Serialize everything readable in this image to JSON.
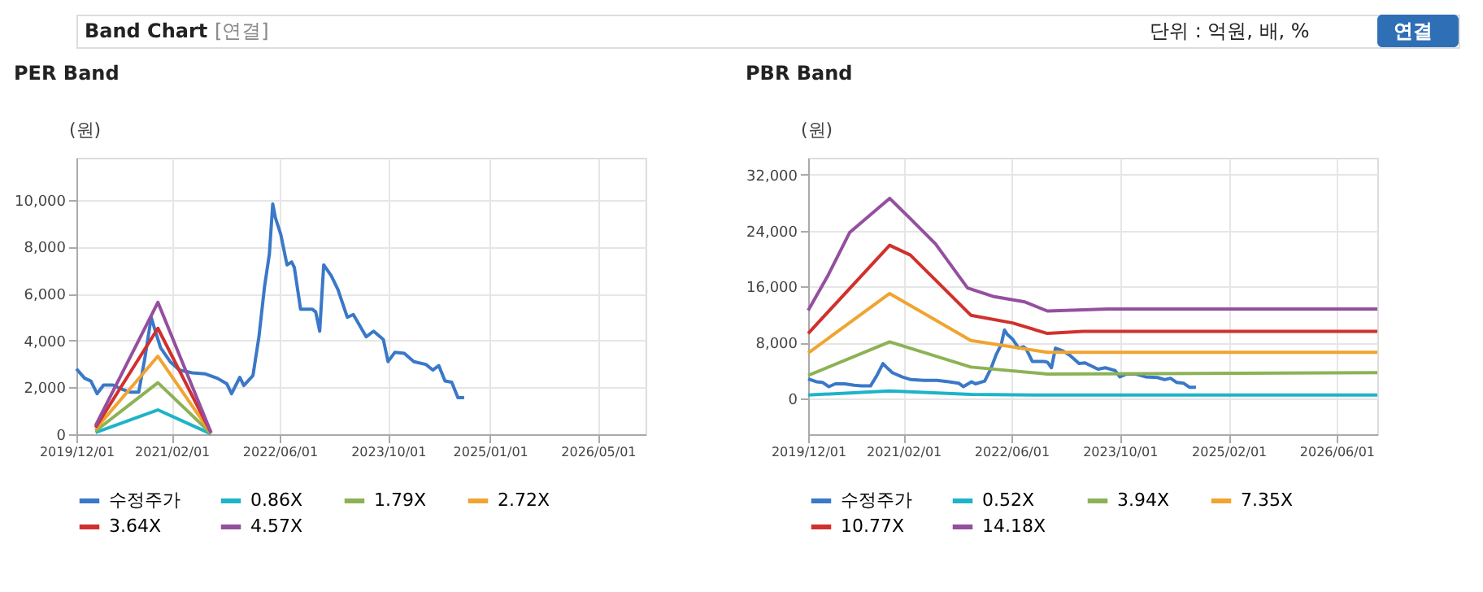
{
  "chart_data": [
    {
      "type": "line",
      "title": "PER Band",
      "ylabel": "(원)",
      "annotations": [
        "Band Chart",
        "[연결]",
        "단위 : 억원, 배, %",
        "연결"
      ],
      "xlim": [
        "2019-12-01",
        "2026-12-01"
      ],
      "xticks": [
        {
          "value": "2019-12-01",
          "label": "2019/12/01"
        },
        {
          "value": "2021-02-01",
          "label": "2021/02/01"
        },
        {
          "value": "2022-06-01",
          "label": "2022/06/01"
        },
        {
          "value": "2023-10-01",
          "label": "2023/10/01"
        },
        {
          "value": "2025-01-01",
          "label": "2025/01/01"
        },
        {
          "value": "2026-05-01",
          "label": "2026/05/01"
        }
      ],
      "ylim": [
        0,
        11800
      ],
      "yticks": [
        {
          "value": 0,
          "label": "0"
        },
        {
          "value": 2000,
          "label": "2,000"
        },
        {
          "value": 4000,
          "label": "4,000"
        },
        {
          "value": 6000,
          "label": "6,000"
        },
        {
          "value": 8000,
          "label": "8,000"
        },
        {
          "value": 10000,
          "label": "10,000"
        }
      ],
      "grid": true,
      "legend": "bottom",
      "line_style": "solid",
      "marker": "none",
      "series": [
        {
          "name": "수정주가",
          "color": "#3a78c8",
          "x": [
            "2019-12-01",
            "2020-01-07",
            "2020-02-04",
            "2020-03-03",
            "2020-04-01",
            "2020-05-13",
            "2020-06-25",
            "2020-07-28",
            "2020-09-06",
            "2020-10-03",
            "2020-11-01",
            "2020-11-16",
            "2020-12-13",
            "2021-01-25",
            "2021-03-07",
            "2021-05-04",
            "2021-07-01",
            "2021-08-25",
            "2021-10-07",
            "2021-10-28",
            "2021-12-04",
            "2021-12-22",
            "2022-02-01",
            "2022-02-28",
            "2022-03-25",
            "2022-04-16",
            "2022-05-01",
            "2022-05-13",
            "2022-06-06",
            "2022-07-04",
            "2022-07-25",
            "2022-08-06",
            "2022-09-03",
            "2022-10-25",
            "2022-11-10",
            "2022-11-28",
            "2022-12-16",
            "2023-01-19",
            "2023-02-18",
            "2023-04-01",
            "2023-04-28",
            "2023-06-25",
            "2023-07-28",
            "2023-09-10",
            "2023-10-01",
            "2023-11-01",
            "2023-12-13",
            "2024-01-25",
            "2024-03-19",
            "2024-04-19",
            "2024-05-16",
            "2024-06-13",
            "2024-07-13",
            "2024-08-10",
            "2024-09-07"
          ],
          "values": [
            2790,
            2390,
            2270,
            1730,
            2100,
            2100,
            1910,
            1800,
            1800,
            3220,
            4990,
            4510,
            3690,
            3100,
            2740,
            2620,
            2580,
            2390,
            2150,
            1730,
            2430,
            2080,
            2500,
            4160,
            6290,
            7700,
            9830,
            9240,
            8530,
            7230,
            7350,
            7120,
            5340,
            5340,
            5220,
            4400,
            7230,
            6760,
            6170,
            4990,
            5110,
            4160,
            4400,
            4040,
            3100,
            3500,
            3450,
            3100,
            2980,
            2740,
            2930,
            2270,
            2220,
            1560,
            1560
          ]
        },
        {
          "name": "0.86X",
          "color": "#1fb3c8",
          "x": [
            "2020-02-25",
            "2020-12-01",
            "2021-07-28"
          ],
          "values": [
            70,
            1040,
            10
          ]
        },
        {
          "name": "1.79X",
          "color": "#8db255",
          "x": [
            "2020-02-25",
            "2020-12-01",
            "2021-07-28"
          ],
          "values": [
            140,
            2200,
            30
          ]
        },
        {
          "name": "2.72X",
          "color": "#f0a431",
          "x": [
            "2020-02-25",
            "2020-12-01",
            "2021-07-28"
          ],
          "values": [
            220,
            3330,
            40
          ]
        },
        {
          "name": "3.64X",
          "color": "#d0312d",
          "x": [
            "2020-02-25",
            "2020-12-01",
            "2021-07-28"
          ],
          "values": [
            290,
            4520,
            60
          ]
        },
        {
          "name": "4.57X",
          "color": "#944f9e",
          "x": [
            "2020-02-25",
            "2020-12-01",
            "2021-07-28"
          ],
          "values": [
            370,
            5630,
            70
          ]
        }
      ]
    },
    {
      "type": "line",
      "title": "PBR Band",
      "ylabel": "(원)",
      "xlim": [
        "2019-12-01",
        "2026-12-01"
      ],
      "xticks": [
        {
          "value": "2019-12-01",
          "label": "2019/12/01"
        },
        {
          "value": "2021-02-01",
          "label": "2021/02/01"
        },
        {
          "value": "2022-06-01",
          "label": "2022/06/01"
        },
        {
          "value": "2023-10-01",
          "label": "2023/10/01"
        },
        {
          "value": "2025-02-01",
          "label": "2025/02/01"
        },
        {
          "value": "2026-06-01",
          "label": "2026/06/01"
        }
      ],
      "ylim": [
        -5100,
        34400
      ],
      "yticks": [
        {
          "value": 0,
          "label": "0"
        },
        {
          "value": 8000,
          "label": "8,000"
        },
        {
          "value": 16000,
          "label": "16,000"
        },
        {
          "value": 24000,
          "label": "24,000"
        },
        {
          "value": 32000,
          "label": "32,000"
        }
      ],
      "grid": true,
      "legend": "bottom",
      "line_style": "solid",
      "marker": "none",
      "series": [
        {
          "name": "수정주가",
          "color": "#3a78c8",
          "x": [
            "2019-12-01",
            "2020-01-07",
            "2020-02-04",
            "2020-03-03",
            "2020-04-01",
            "2020-05-13",
            "2020-06-25",
            "2020-07-28",
            "2020-09-06",
            "2020-10-03",
            "2020-11-01",
            "2020-11-16",
            "2020-12-13",
            "2021-01-25",
            "2021-03-07",
            "2021-05-04",
            "2021-07-01",
            "2021-08-25",
            "2021-10-07",
            "2021-10-28",
            "2021-12-04",
            "2021-12-22",
            "2022-02-01",
            "2022-02-28",
            "2022-03-25",
            "2022-04-16",
            "2022-05-01",
            "2022-05-13",
            "2022-06-06",
            "2022-07-04",
            "2022-07-25",
            "2022-08-06",
            "2022-09-03",
            "2022-10-25",
            "2022-11-10",
            "2022-11-28",
            "2022-12-16",
            "2023-01-19",
            "2023-02-18",
            "2023-04-01",
            "2023-04-28",
            "2023-06-25",
            "2023-07-28",
            "2023-09-10",
            "2023-10-01",
            "2023-11-01",
            "2023-12-13",
            "2024-01-25",
            "2024-03-19",
            "2024-04-19",
            "2024-05-16",
            "2024-06-13",
            "2024-07-13",
            "2024-08-10",
            "2024-09-07"
          ],
          "values": [
            2800,
            2400,
            2300,
            1700,
            2100,
            2100,
            1900,
            1800,
            1800,
            3200,
            5000,
            4500,
            3700,
            3100,
            2700,
            2600,
            2600,
            2400,
            2200,
            1700,
            2400,
            2100,
            2500,
            4200,
            6300,
            7700,
            9800,
            9200,
            8500,
            7200,
            7400,
            7100,
            5300,
            5300,
            5200,
            4400,
            7200,
            6800,
            6200,
            5000,
            5100,
            4200,
            4400,
            4000,
            3100,
            3500,
            3500,
            3100,
            3000,
            2700,
            2900,
            2300,
            2200,
            1600,
            1600
          ]
        },
        {
          "name": "0.52X",
          "color": "#1fb3c8",
          "x": [
            "2019-12-01",
            "2020-12-01",
            "2021-12-01",
            "2022-11-10",
            "2026-12-01"
          ],
          "values": [
            500,
            1100,
            600,
            500,
            500
          ]
        },
        {
          "name": "3.94X",
          "color": "#8db255",
          "x": [
            "2019-12-01",
            "2020-12-01",
            "2021-12-01",
            "2022-11-10",
            "2026-12-01"
          ],
          "values": [
            3300,
            8100,
            4500,
            3500,
            3700
          ]
        },
        {
          "name": "7.35X",
          "color": "#f0a431",
          "x": [
            "2019-12-01",
            "2020-12-01",
            "2021-12-01",
            "2022-11-10",
            "2026-12-01"
          ],
          "values": [
            6500,
            15000,
            8300,
            6600,
            6600
          ]
        },
        {
          "name": "10.77X",
          "color": "#d0312d",
          "x": [
            "2019-12-01",
            "2020-12-01",
            "2021-03-04",
            "2021-12-01",
            "2022-06-06",
            "2022-11-10",
            "2023-04-19",
            "2026-12-01"
          ],
          "values": [
            9300,
            21900,
            20500,
            11900,
            10800,
            9300,
            9600,
            9600
          ]
        },
        {
          "name": "14.18X",
          "color": "#944f9e",
          "x": [
            "2019-12-01",
            "2020-02-25",
            "2020-06-04",
            "2020-12-01",
            "2021-03-04",
            "2021-06-25",
            "2021-11-16",
            "2022-03-10",
            "2022-08-01",
            "2022-11-10",
            "2023-08-07",
            "2026-12-01"
          ],
          "values": [
            12600,
            17400,
            23700,
            28600,
            25700,
            22100,
            15800,
            14600,
            13800,
            12500,
            12800,
            12800
          ]
        }
      ]
    }
  ]
}
